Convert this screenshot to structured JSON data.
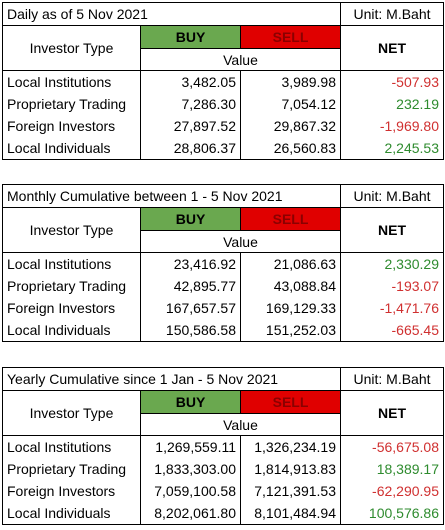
{
  "tables": [
    {
      "title": "Daily as of 5 Nov 2021",
      "unit": "Unit: M.Baht",
      "headers": {
        "investor_type": "Investor Type",
        "buy": "BUY",
        "sell": "SELL",
        "net": "NET",
        "value": "Value"
      },
      "rows": [
        [
          "Local Institutions",
          "3,482.05",
          "3,989.98",
          "-507.93"
        ],
        [
          "Proprietary Trading",
          "7,286.30",
          "7,054.12",
          "232.19"
        ],
        [
          "Foreign Investors",
          "27,897.52",
          "29,867.32",
          "-1,969.80"
        ],
        [
          "Local Individuals",
          "28,806.37",
          "26,560.83",
          "2,245.53"
        ]
      ]
    },
    {
      "title": "Monthly Cumulative between 1 - 5 Nov 2021",
      "unit": "Unit: M.Baht",
      "headers": {
        "investor_type": "Investor Type",
        "buy": "BUY",
        "sell": "SELL",
        "net": "NET",
        "value": "Value"
      },
      "rows": [
        [
          "Local Institutions",
          "23,416.92",
          "21,086.63",
          "2,330.29"
        ],
        [
          "Proprietary Trading",
          "42,895.77",
          "43,088.84",
          "-193.07"
        ],
        [
          "Foreign Investors",
          "167,657.57",
          "169,129.33",
          "-1,471.76"
        ],
        [
          "Local Individuals",
          "150,586.58",
          "151,252.03",
          "-665.45"
        ]
      ]
    },
    {
      "title": "Yearly Cumulative since 1 Jan - 5 Nov 2021",
      "unit": "Unit: M.Baht",
      "headers": {
        "investor_type": "Investor Type",
        "buy": "BUY",
        "sell": "SELL",
        "net": "NET",
        "value": "Value"
      },
      "rows": [
        [
          "Local Institutions",
          "1,269,559.11",
          "1,326,234.19",
          "-56,675.08"
        ],
        [
          "Proprietary Trading",
          "1,833,303.00",
          "1,814,913.83",
          "18,389.17"
        ],
        [
          "Foreign Investors",
          "7,059,100.58",
          "7,121,391.53",
          "-62,290.95"
        ],
        [
          "Local Individuals",
          "8,202,061.80",
          "8,101,484.94",
          "100,576.86"
        ]
      ]
    }
  ]
}
